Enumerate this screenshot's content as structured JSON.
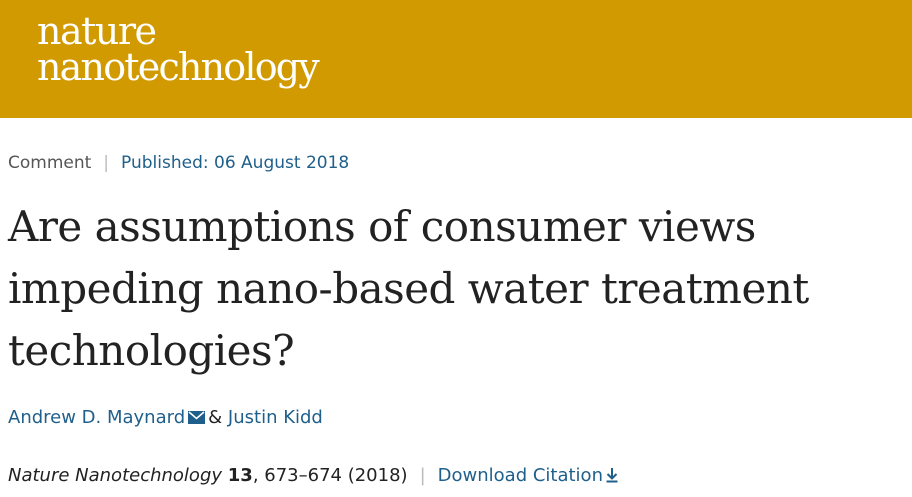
{
  "header": {
    "logo_line1": "nature",
    "logo_line2": "nanotechnology",
    "brand_color": "#d09a00"
  },
  "meta": {
    "article_type": "Comment",
    "separator": "|",
    "published": "Published: 06 August 2018"
  },
  "article": {
    "title": "Are assumptions of consumer views impeding nano-based water treatment technologies?"
  },
  "authors": {
    "author1": "Andrew D. Maynard",
    "conjunction": "&",
    "author2": "Justin Kidd",
    "author1_icon": "mail-icon"
  },
  "citation": {
    "journal": "Nature Nanotechnology",
    "volume": "13",
    "pages_year": ", 673–674 (2018)",
    "separator": "|",
    "download_label": "Download Citation",
    "download_icon": "download-icon",
    "link_color": "#1f5f8b"
  }
}
